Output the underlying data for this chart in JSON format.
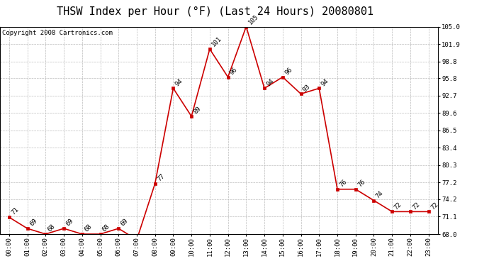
{
  "title": "THSW Index per Hour (°F) (Last 24 Hours) 20080801",
  "copyright": "Copyright 2008 Cartronics.com",
  "hours": [
    "00:00",
    "01:00",
    "02:00",
    "03:00",
    "04:00",
    "05:00",
    "06:00",
    "07:00",
    "08:00",
    "09:00",
    "10:00",
    "11:00",
    "12:00",
    "13:00",
    "14:00",
    "15:00",
    "16:00",
    "17:00",
    "18:00",
    "19:00",
    "20:00",
    "21:00",
    "22:00",
    "23:00"
  ],
  "values": [
    71,
    69,
    68,
    69,
    68,
    68,
    69,
    67,
    77,
    94,
    89,
    101,
    96,
    105,
    94,
    96,
    93,
    94,
    76,
    76,
    74,
    72,
    72,
    72
  ],
  "line_color": "#cc0000",
  "marker_color": "#cc0000",
  "bg_color": "#ffffff",
  "grid_color": "#bbbbbb",
  "ylim_min": 68.0,
  "ylim_max": 105.0,
  "yticks": [
    68.0,
    71.1,
    74.2,
    77.2,
    80.3,
    83.4,
    86.5,
    89.6,
    92.7,
    95.8,
    98.8,
    101.9,
    105.0
  ],
  "title_fontsize": 11,
  "label_fontsize": 6.5,
  "axis_fontsize": 6.5,
  "copyright_fontsize": 6.5
}
